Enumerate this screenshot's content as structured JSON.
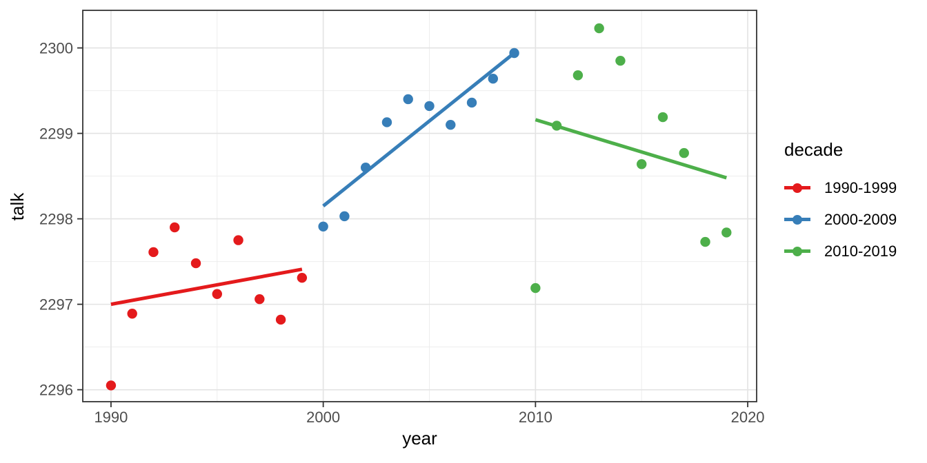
{
  "page": {
    "background": "#ffffff"
  },
  "chart_data": {
    "type": "scatter",
    "title": "",
    "xlabel": "year",
    "ylabel": "talk",
    "legend_title": "decade",
    "legend_position": "right",
    "grid": true,
    "xlim": [
      1988.67,
      2020.42
    ],
    "ylim": [
      2295.86,
      2300.44
    ],
    "x_ticks": [
      1990,
      2000,
      2010,
      2020
    ],
    "y_ticks": [
      2296,
      2297,
      2298,
      2299,
      2300
    ],
    "x_minor_ticks": [
      1995,
      2005,
      2015
    ],
    "y_minor_ticks": [
      2296.5,
      2297.5,
      2298.5,
      2299.5
    ],
    "colors": {
      "background": "#ffffff",
      "panel_background": "#ffffff",
      "grid_major": "#e3e3e3",
      "grid_minor": "#ededed",
      "panel_border": "#333333",
      "tick_mark": "#333333",
      "tick_label": "#4d4d4d",
      "axis_title": "#000000",
      "series_red": "#E41A1C",
      "series_blue": "#377EB8",
      "series_green": "#4DAF4A"
    },
    "series": [
      {
        "name": "1990-1999",
        "color": "#E41A1C",
        "x": [
          1990,
          1991,
          1992,
          1993,
          1994,
          1995,
          1996,
          1997,
          1998,
          1999
        ],
        "y": [
          2296.05,
          2296.89,
          2297.61,
          2297.9,
          2297.48,
          2297.12,
          2297.75,
          2297.06,
          2296.82,
          2297.31
        ],
        "trend": {
          "x": [
            1990,
            1999
          ],
          "y": [
            2297.0,
            2297.41
          ]
        }
      },
      {
        "name": "2000-2009",
        "color": "#377EB8",
        "x": [
          2000,
          2001,
          2002,
          2003,
          2004,
          2005,
          2006,
          2007,
          2008,
          2009
        ],
        "y": [
          2297.91,
          2298.03,
          2298.6,
          2299.13,
          2299.4,
          2299.32,
          2299.1,
          2299.36,
          2299.64,
          2299.94
        ],
        "trend": {
          "x": [
            2000,
            2009
          ],
          "y": [
            2298.15,
            2299.94
          ]
        }
      },
      {
        "name": "2010-2019",
        "color": "#4DAF4A",
        "x": [
          2010,
          2011,
          2012,
          2013,
          2014,
          2015,
          2016,
          2017,
          2018,
          2019
        ],
        "y": [
          2297.19,
          2299.09,
          2299.68,
          2300.23,
          2299.85,
          2298.64,
          2299.19,
          2298.77,
          2297.73,
          2297.84
        ],
        "trend": {
          "x": [
            2010,
            2019
          ],
          "y": [
            2299.16,
            2298.48
          ]
        }
      }
    ]
  }
}
